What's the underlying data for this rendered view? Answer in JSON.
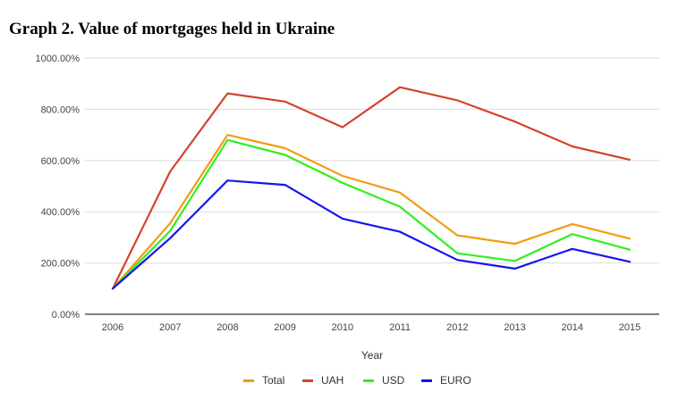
{
  "figure_title": "Graph 2. Value of mortgages held in Ukraine",
  "chart_data": {
    "type": "line",
    "title": "",
    "xlabel": "Year",
    "ylabel": "",
    "categories": [
      "2006",
      "2007",
      "2008",
      "2009",
      "2010",
      "2011",
      "2012",
      "2013",
      "2014",
      "2015"
    ],
    "ylim": [
      0,
      1000
    ],
    "yticks": [
      "0.00%",
      "200.00%",
      "400.00%",
      "600.00%",
      "800.00%",
      "1000.00%"
    ],
    "grid": true,
    "legend_position": "bottom",
    "series": [
      {
        "name": "Total",
        "color": "#f39c12",
        "values": [
          100,
          355,
          700,
          648,
          540,
          475,
          308,
          275,
          352,
          295
        ]
      },
      {
        "name": "UAH",
        "color": "#d2442b",
        "values": [
          100,
          557,
          862,
          830,
          730,
          886,
          835,
          752,
          655,
          603
        ]
      },
      {
        "name": "USD",
        "color": "#33ee22",
        "values": [
          100,
          325,
          680,
          622,
          513,
          420,
          238,
          208,
          313,
          252
        ]
      },
      {
        "name": "EURO",
        "color": "#1515ee",
        "values": [
          100,
          297,
          522,
          505,
          373,
          322,
          212,
          178,
          255,
          205
        ]
      }
    ]
  }
}
